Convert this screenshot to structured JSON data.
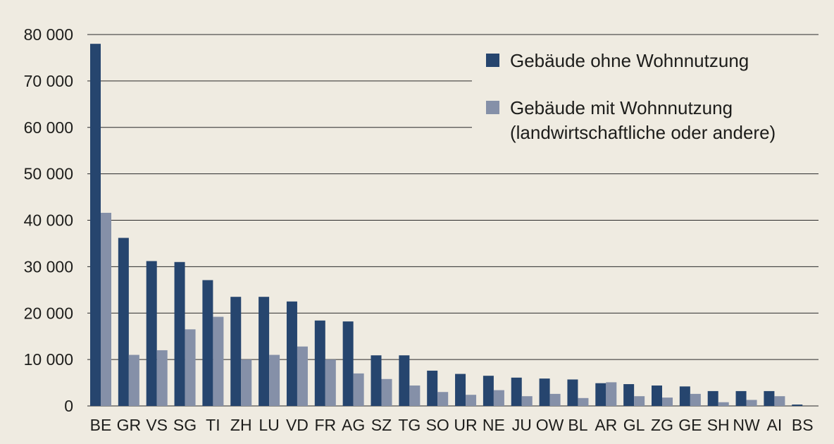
{
  "chart_data": {
    "type": "bar",
    "title": "",
    "xlabel": "",
    "ylabel": "",
    "ylim": [
      0,
      80000
    ],
    "yticks": [
      0,
      10000,
      20000,
      30000,
      40000,
      50000,
      60000,
      70000,
      80000
    ],
    "ytick_labels": [
      "0",
      "10 000",
      "20 000",
      "30 000",
      "40 000",
      "50 000",
      "60 000",
      "70 000",
      "80 000"
    ],
    "grid": "horizontal",
    "legend_position": "top-right",
    "categories": [
      "BE",
      "GR",
      "VS",
      "SG",
      "TI",
      "ZH",
      "LU",
      "VD",
      "FR",
      "AG",
      "SZ",
      "TG",
      "SO",
      "UR",
      "NE",
      "JU",
      "OW",
      "BL",
      "AR",
      "GL",
      "ZG",
      "GE",
      "SH",
      "NW",
      "AI",
      "BS"
    ],
    "series": [
      {
        "name": "Gebäude ohne Wohnnutzung",
        "color": "#26456e",
        "values": [
          78000,
          36200,
          31200,
          31000,
          27100,
          23500,
          23500,
          22500,
          18400,
          18200,
          10900,
          10900,
          7600,
          6900,
          6500,
          6100,
          5900,
          5700,
          4900,
          4700,
          4400,
          4200,
          3200,
          3200,
          3200,
          300
        ]
      },
      {
        "name": "Gebäude mit Wohnnutzung\n(landwirtschaftliche oder andere)",
        "color": "#8590a8",
        "values": [
          41600,
          11000,
          12000,
          16500,
          19200,
          10000,
          11000,
          12800,
          10000,
          7000,
          5800,
          4400,
          3000,
          2400,
          3400,
          2100,
          2600,
          1700,
          5100,
          2100,
          1800,
          2600,
          800,
          1300,
          2100,
          0
        ]
      }
    ]
  }
}
